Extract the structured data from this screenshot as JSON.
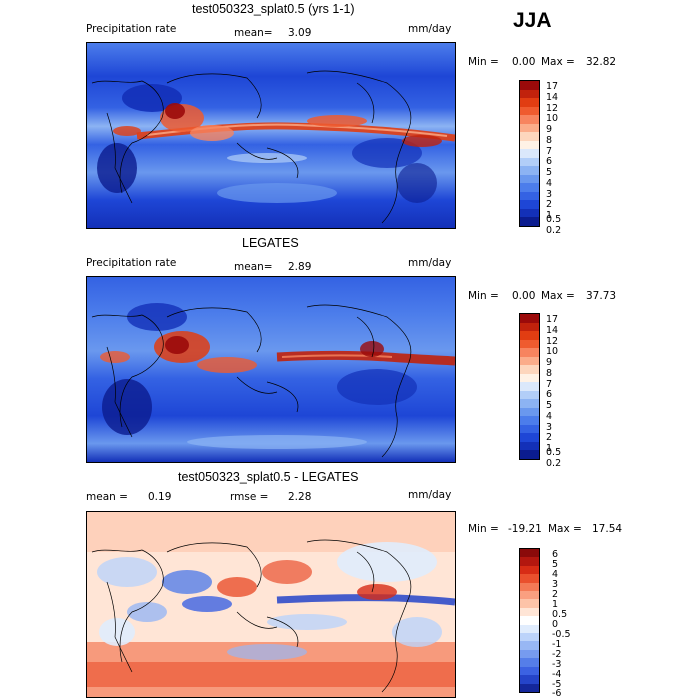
{
  "season": "JJA",
  "palette_precip": [
    "#9b0a0a",
    "#c1220c",
    "#e13d12",
    "#ef5b2f",
    "#f7845f",
    "#fbac8a",
    "#fdd6bd",
    "#fff2e6",
    "#dbe8fb",
    "#b2cef8",
    "#8cb3f3",
    "#6a98ee",
    "#4c7deb",
    "#3462e3",
    "#1e46d6",
    "#1330b8",
    "#0b1c8f"
  ],
  "palette_diff": [
    "#8a0a0a",
    "#b3170f",
    "#d72c15",
    "#ea502d",
    "#f47a56",
    "#fa9f80",
    "#fdc3a8",
    "#ffe5d6",
    "#ffffff",
    "#e0ecfd",
    "#bcd3fa",
    "#98b7f4",
    "#769bef",
    "#557ee9",
    "#3c62e2",
    "#2544c9",
    "#14279b"
  ],
  "panels": [
    {
      "title": "test050323_splat0.5 (yrs 1-1)",
      "left_label": "Precipitation rate",
      "stat_label": "mean=",
      "stat_value": "3.09",
      "units": "mm/day",
      "min_label": "Min =",
      "min_value": "0.00",
      "max_label": "Max =",
      "max_value": "32.82",
      "colorbar_labels": [
        "17",
        "14",
        "12",
        "10",
        "9",
        "8",
        "7",
        "6",
        "5",
        "4",
        "3",
        "2",
        "1",
        "0.5",
        "0.2"
      ]
    },
    {
      "title": "LEGATES",
      "left_label": "Precipitation rate",
      "stat_label": "mean=",
      "stat_value": "2.89",
      "units": "mm/day",
      "min_label": "Min =",
      "min_value": "0.00",
      "max_label": "Max =",
      "max_value": "37.73",
      "colorbar_labels": [
        "17",
        "14",
        "12",
        "10",
        "9",
        "8",
        "7",
        "6",
        "5",
        "4",
        "3",
        "2",
        "1",
        "0.5",
        "0.2"
      ]
    },
    {
      "title": "test050323_splat0.5 - LEGATES",
      "mean_label": "mean =",
      "mean_value": "0.19",
      "rmse_label": "rmse =",
      "rmse_value": "2.28",
      "units": "mm/day",
      "min_label": "Min =",
      "min_value": "-19.21",
      "max_label": "Max =",
      "max_value": "17.54",
      "colorbar_labels": [
        "6",
        "5",
        "4",
        "3",
        "2",
        "1",
        "0.5",
        "0",
        "-0.5",
        "-1",
        "-2",
        "-3",
        "-4",
        "-5",
        "-6"
      ]
    }
  ]
}
